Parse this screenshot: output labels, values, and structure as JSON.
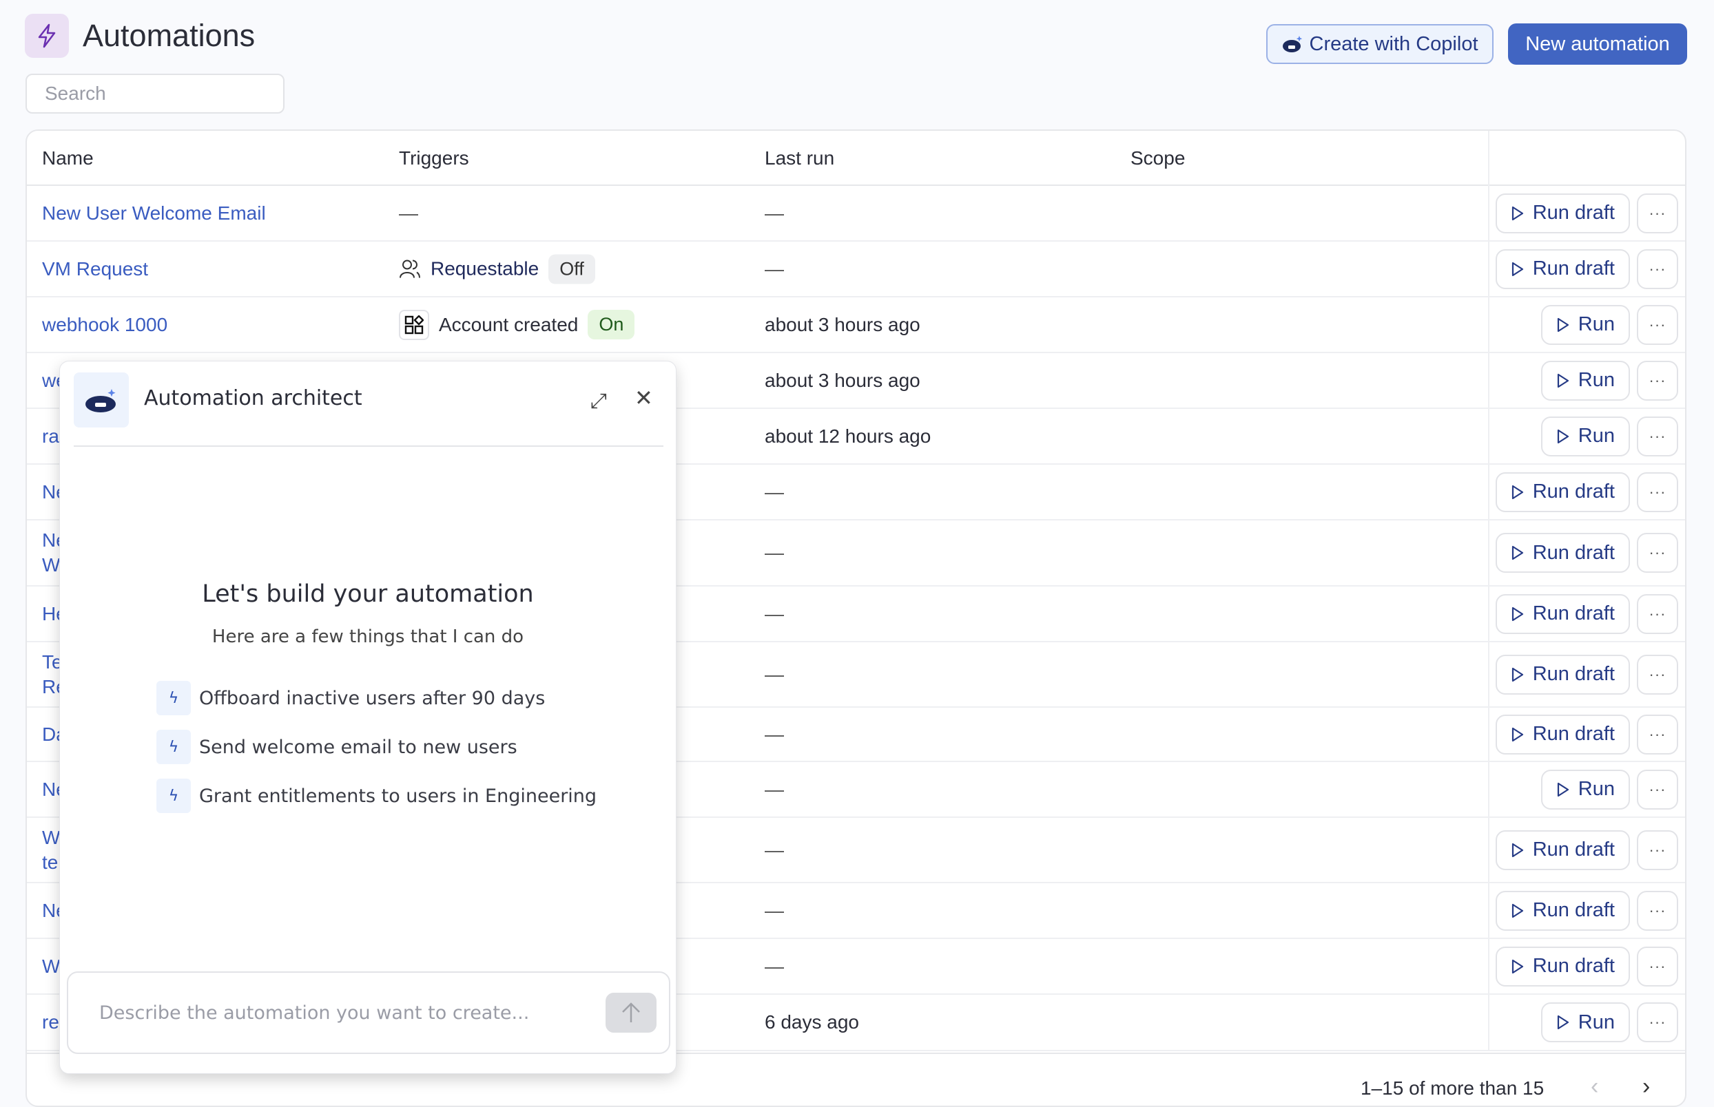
{
  "header": {
    "title": "Automations",
    "icon": "lightning-icon",
    "copilot_label": "Create with Copilot",
    "new_label": "New automation",
    "accent": "#4165c2"
  },
  "search": {
    "placeholder": "Search",
    "value": ""
  },
  "table": {
    "columns": [
      "Name",
      "Triggers",
      "Last run",
      "Scope"
    ],
    "rows": [
      {
        "name": "New User Welcome Email",
        "trigger": "—",
        "trigger_badge": "",
        "last_run": "—",
        "action": "Run draft"
      },
      {
        "name": "VM Request",
        "trigger": "Requestable",
        "trigger_icon": "users-icon",
        "trigger_badge": "Off",
        "last_run": "—",
        "action": "Run draft"
      },
      {
        "name": "webhook 1000",
        "trigger": "Account created",
        "trigger_icon": "apps-icon",
        "trigger_badge": "On",
        "last_run": "about 3 hours ago",
        "action": "Run"
      },
      {
        "name": "we",
        "last_run": "about 3 hours ago",
        "action": "Run"
      },
      {
        "name": "ra",
        "last_run": "about 12 hours ago",
        "action": "Run"
      },
      {
        "name": "Ne",
        "last_run": "—",
        "action": "Run draft"
      },
      {
        "name": "Ne W",
        "last_run": "—",
        "action": "Run draft"
      },
      {
        "name": "He",
        "last_run": "—",
        "action": "Run draft"
      },
      {
        "name": "Te Re",
        "last_run": "—",
        "action": "Run draft"
      },
      {
        "name": "Da",
        "last_run": "—",
        "action": "Run draft"
      },
      {
        "name": "Ne",
        "last_run": "—",
        "action": "Run"
      },
      {
        "name": "W te",
        "last_run": "—",
        "action": "Run draft"
      },
      {
        "name": "Ne",
        "last_run": "—",
        "action": "Run draft"
      },
      {
        "name": "W",
        "last_run": "—",
        "action": "Run draft"
      },
      {
        "name": "re",
        "last_run": "6 days ago",
        "action": "Run"
      }
    ],
    "more_label": "···"
  },
  "pagination": {
    "text": "1–15 of more than 15",
    "prev": "‹",
    "next": "›"
  },
  "dialog": {
    "title": "Automation architect",
    "heading": "Let's build your automation",
    "subheading": "Here are a few things that I can do",
    "suggestions": [
      "Offboard inactive users after 90 days",
      "Send welcome email to new users",
      "Grant entitlements to users in Engineering"
    ],
    "input_placeholder": "Describe the automation you want to create..."
  }
}
